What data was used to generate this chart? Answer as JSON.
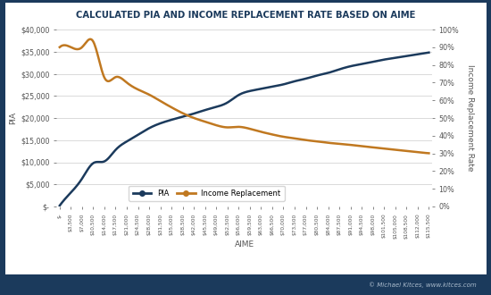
{
  "title": "CALCULATED PIA AND INCOME REPLACEMENT RATE BASED ON AIME",
  "xlabel": "AIME",
  "ylabel_left": "PIA",
  "ylabel_right": "Income Replacement Rate",
  "outer_bg_color": "#1B3A5C",
  "title_bg_color": "#FFFFFF",
  "plot_bg_color": "#FFFFFF",
  "title_color": "#1B3A5C",
  "tick_label_color": "#555555",
  "axis_label_color": "#555555",
  "copyright": "© Michael Kitces, www.kitces.com",
  "pia_color": "#1B3A5C",
  "replacement_color": "#C07820",
  "aime_values": [
    0,
    3500,
    7000,
    10500,
    14000,
    17500,
    21000,
    24500,
    28000,
    31500,
    35000,
    38500,
    42000,
    45500,
    49000,
    52500,
    56000,
    59500,
    63000,
    66500,
    70000,
    73500,
    77000,
    80500,
    84000,
    87500,
    91000,
    94500,
    98000,
    101500,
    105000,
    108500,
    112000,
    115500
  ],
  "pia_values": [
    200,
    3150,
    6300,
    9800,
    10200,
    12800,
    14700,
    16200,
    17700,
    18800,
    19600,
    20300,
    21000,
    21800,
    22500,
    23500,
    25200,
    26100,
    26600,
    27100,
    27600,
    28300,
    28900,
    29600,
    30200,
    31000,
    31700,
    32200,
    32700,
    33200,
    33600,
    34000,
    34400,
    34800
  ],
  "replacement_values": [
    0.9,
    0.9,
    0.9,
    0.932,
    0.728,
    0.731,
    0.7,
    0.661,
    0.632,
    0.596,
    0.56,
    0.527,
    0.5,
    0.479,
    0.459,
    0.447,
    0.45,
    0.439,
    0.422,
    0.407,
    0.394,
    0.385,
    0.375,
    0.368,
    0.36,
    0.354,
    0.348,
    0.341,
    0.334,
    0.327,
    0.32,
    0.314,
    0.307,
    0.301
  ],
  "xtick_labels": [
    "$-",
    "$3,500",
    "$7,000",
    "$10,500",
    "$14,000",
    "$17,500",
    "$21,000",
    "$24,500",
    "$28,000",
    "$31,500",
    "$35,000",
    "$38,500",
    "$42,000",
    "$45,500",
    "$49,000",
    "$52,500",
    "$56,000",
    "$59,500",
    "$63,000",
    "$66,500",
    "$70,000",
    "$73,500",
    "$77,000",
    "$80,500",
    "$84,000",
    "$87,500",
    "$91,000",
    "$94,500",
    "$98,000",
    "$101,500",
    "$105,000",
    "$108,500",
    "$112,000",
    "$115,500"
  ],
  "ylim_left": [
    0,
    40000
  ],
  "ylim_right": [
    0,
    1.0
  ],
  "yticks_left": [
    0,
    5000,
    10000,
    15000,
    20000,
    25000,
    30000,
    35000,
    40000
  ],
  "ytick_labels_left": [
    "$-",
    "$5,000",
    "$10,000",
    "$15,000",
    "$20,000",
    "$25,000",
    "$30,000",
    "$35,000",
    "$40,000"
  ],
  "yticks_right": [
    0.0,
    0.1,
    0.2,
    0.3,
    0.4,
    0.5,
    0.6,
    0.7,
    0.8,
    0.9,
    1.0
  ],
  "ytick_labels_right": [
    "0%",
    "10%",
    "20%",
    "30%",
    "40%",
    "50%",
    "60%",
    "70%",
    "80%",
    "90%",
    "100%"
  ]
}
